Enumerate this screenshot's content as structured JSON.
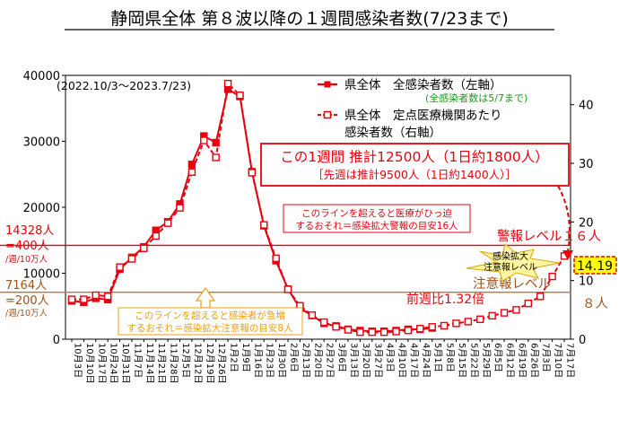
{
  "title": "静岡県全体 第８波以降の１週間感染者数(7/23まで)",
  "period": "(2022.10/3～2023.7/23)",
  "legend": {
    "left_series": "県全体　全感染者数（左軸）",
    "left_note": "(全感染者数は5/7まで)",
    "right_series_line1": "県全体　定点医療機関あたり",
    "right_series_line2": "感染者数（右軸）"
  },
  "callout": {
    "line1": "この1週間 推計12500人（1日約1800人）",
    "line2": "［先週は推計9500人（1日約1400人）］"
  },
  "red_level": {
    "left_line1": "14328人",
    "left_line2": "=400人",
    "left_line3": "/週/10万人",
    "label": "警報レベル１６人",
    "note_line1": "このラインを超えると医療がひっ迫",
    "note_line2": "するおそれ＝感染拡大警報の目安16人"
  },
  "orange_level": {
    "left_line1": "7164人",
    "left_line2": "=200人",
    "left_line3": "/週/10万人",
    "label": "注意報レベル",
    "label_num": "８人",
    "note_line1": "このラインを超えると感染者が急増",
    "note_line2": "するおそれ＝感染拡大注意報の目安8人"
  },
  "star_label_line1": "感染拡大",
  "star_label_line2": "注意報レベル",
  "latest_value_label": "14.19",
  "ratio_label": "前週比1.32倍",
  "colors": {
    "series": "#e8000f",
    "orange": "#c8741a",
    "star": "#fff5a0",
    "latest_bg": "#ffff00"
  },
  "chart_data": {
    "type": "line",
    "x": [
      "10月3日",
      "10月10日",
      "10月17日",
      "10月24日",
      "10月31日",
      "11月7日",
      "11月14日",
      "11月21日",
      "11月28日",
      "12月5日",
      "12月12日",
      "12月19日",
      "12月26日",
      "1月2日",
      "1月9日",
      "1月16日",
      "1月23日",
      "1月30日",
      "2月6日",
      "2月13日",
      "2月20日",
      "2月27日",
      "3月6日",
      "3月13日",
      "3月20日",
      "3月27日",
      "4月3日",
      "4月10日",
      "4月17日",
      "4月24日",
      "5月1日",
      "5月8日",
      "5月15日",
      "5月22日",
      "5月29日",
      "6月5日",
      "6月12日",
      "6月19日",
      "6月26日",
      "7月3日",
      "7月10日",
      "7月17日"
    ],
    "series": [
      {
        "name": "県全体　全感染者数（左軸）",
        "axis": "left",
        "values": [
          5800,
          5600,
          6200,
          6000,
          10600,
          12400,
          14000,
          16500,
          17800,
          20500,
          26500,
          30800,
          29800,
          37900,
          36800,
          25400,
          17200,
          11900,
          7600,
          4700,
          3600,
          2400,
          2000,
          1500,
          1300,
          1200,
          1200,
          1300,
          1500,
          1500,
          1700,
          null,
          null,
          null,
          null,
          null,
          null,
          null,
          null,
          null,
          null,
          null
        ]
      },
      {
        "name": "県全体　定点医療機関あたり感染者数（右軸）",
        "axis": "right",
        "values": [
          6.8,
          6.8,
          7.5,
          7.3,
          12.3,
          13.7,
          15.5,
          17.6,
          19.8,
          22.4,
          28.5,
          33.9,
          31.0,
          43.6,
          41.6,
          28.4,
          19.5,
          13.8,
          8.5,
          5.7,
          4.1,
          2.9,
          2.1,
          1.6,
          1.2,
          1.2,
          1.2,
          1.3,
          1.5,
          1.8,
          2.1,
          2.3,
          2.7,
          3.0,
          3.4,
          4.0,
          4.5,
          5.0,
          6.1,
          7.3,
          10.7,
          14.19
        ]
      }
    ],
    "ylim_left": [
      0,
      40000
    ],
    "ylim_right": [
      0,
      45
    ],
    "yticks_left": [
      "0",
      "10000",
      "20000",
      "30000",
      "40000"
    ],
    "yticks_right": [
      "0",
      "10",
      "20",
      "30",
      "40"
    ],
    "reference_lines": [
      {
        "axis": "right",
        "value": 16,
        "label": "警報レベル１６人"
      },
      {
        "axis": "right",
        "value": 8,
        "label": "注意報レベル８人"
      }
    ],
    "projected_point": {
      "x": "7月23日",
      "value": 14.19
    }
  }
}
